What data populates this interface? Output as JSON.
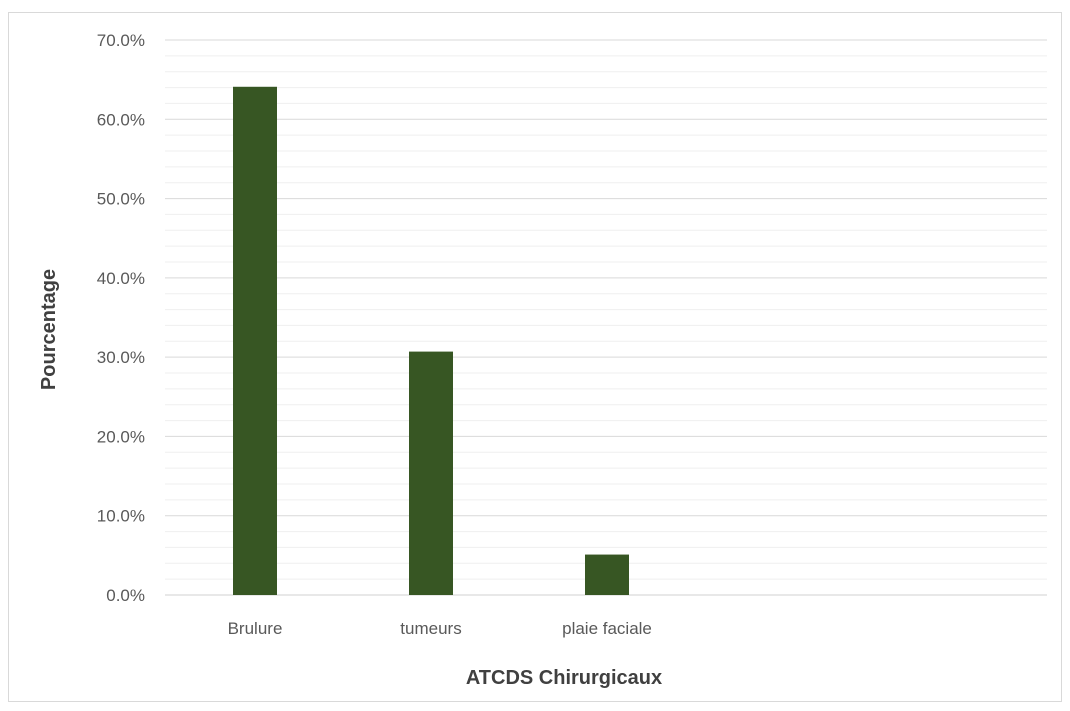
{
  "chart_data": {
    "type": "bar",
    "categories": [
      "Brulure",
      "tumeurs",
      "plaie faciale"
    ],
    "values": [
      64.1,
      30.7,
      5.1
    ],
    "xlabel": "ATCDS Chirurgicaux",
    "ylabel": "Pourcentage",
    "ylim": [
      0,
      70
    ],
    "yticks": [
      0,
      10,
      20,
      30,
      40,
      50,
      60,
      70
    ],
    "ytick_labels": [
      "0.0%",
      "10.0%",
      "20.0%",
      "30.0%",
      "40.0%",
      "50.0%",
      "60.0%",
      "70.0%"
    ],
    "grid": true,
    "minor_grid": true,
    "legend": "none",
    "bar_color": "#375623"
  }
}
